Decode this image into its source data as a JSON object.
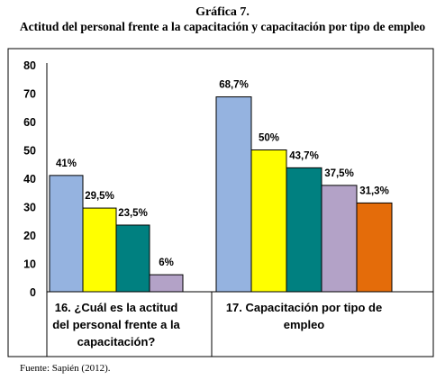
{
  "figure": {
    "title": "Gráfica 7.",
    "subtitle": "Actitud del personal frente a la capacitación y capacitación por tipo de empleo",
    "source": "Fuente: Sapién (2012)."
  },
  "chart_data": {
    "type": "bar",
    "ylim": [
      0,
      80
    ],
    "yticks": [
      "0",
      "10",
      "20",
      "30",
      "40",
      "50",
      "60",
      "70",
      "80"
    ],
    "grid": false,
    "groups": [
      {
        "label_lines": [
          "16. ¿Cuál es la actitud",
          "del personal frente a la",
          "capacitación?"
        ],
        "bars": [
          {
            "value": 41,
            "label": "41%",
            "color": "#95B3E0"
          },
          {
            "value": 29.5,
            "label": "29,5%",
            "color": "#FFFF00"
          },
          {
            "value": 23.5,
            "label": "23,5%",
            "color": "#008080"
          },
          {
            "value": 6,
            "label": "6%",
            "color": "#B3A2C7"
          }
        ]
      },
      {
        "label_lines": [
          "17. Capacitación por tipo de",
          "empleo"
        ],
        "bars": [
          {
            "value": 68.7,
            "label": "68,7%",
            "color": "#95B3E0"
          },
          {
            "value": 50,
            "label": "50%",
            "color": "#FFFF00"
          },
          {
            "value": 43.7,
            "label": "43,7%",
            "color": "#008080"
          },
          {
            "value": 37.5,
            "label": "37,5%",
            "color": "#B3A2C7"
          },
          {
            "value": 31.3,
            "label": "31,3%",
            "color": "#E46C0A"
          }
        ]
      }
    ]
  }
}
